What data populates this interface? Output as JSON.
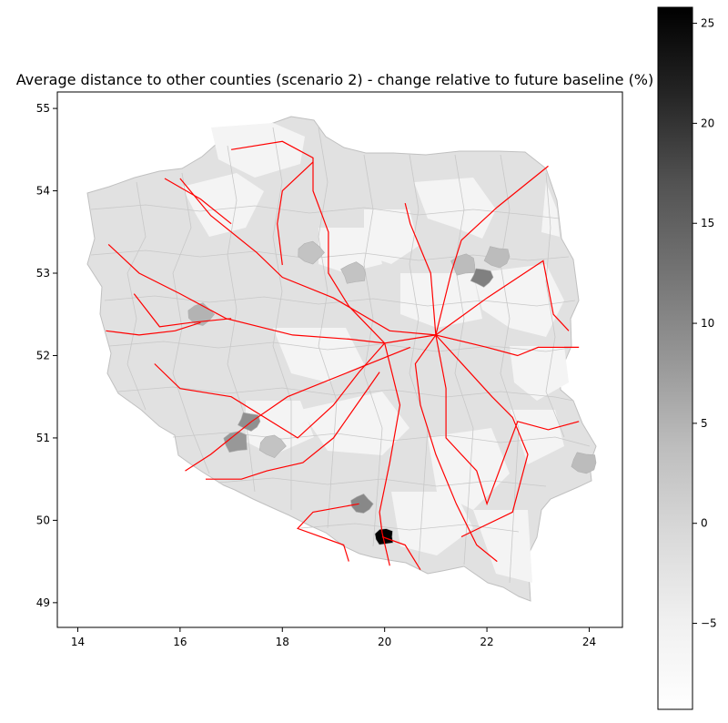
{
  "chart_data": {
    "type": "choropleth-map",
    "title": "Average distance to other counties (scenario 2) - change relative to future baseline (%)",
    "x_ticks": [
      14,
      16,
      18,
      20,
      22,
      24
    ],
    "y_ticks": [
      49,
      50,
      51,
      52,
      53,
      54,
      55
    ],
    "xlim": [
      13.6,
      24.65
    ],
    "ylim": [
      48.7,
      55.2
    ],
    "colorbar": {
      "colormap": "Greys",
      "range": [
        -9.3,
        25.8
      ],
      "ticks": [
        -5,
        0,
        5,
        10,
        15,
        20,
        25
      ]
    },
    "grid": false,
    "legend": "none",
    "colors": {
      "rail_lines": "#ff0000",
      "boundary": "#c8c8c8",
      "background_region": "#e1e1e1",
      "max_region": "#000000"
    },
    "highlighted_regions": [
      {
        "center": [
          20.0,
          49.8
        ],
        "value": 25.8
      },
      {
        "center": [
          21.9,
          52.95
        ],
        "value": 11
      },
      {
        "center": [
          19.55,
          50.2
        ],
        "value": 10
      },
      {
        "center": [
          17.1,
          50.95
        ],
        "value": 8
      },
      {
        "center": [
          17.35,
          51.2
        ],
        "value": 9
      },
      {
        "center": [
          16.4,
          52.5
        ],
        "value": 5
      },
      {
        "center": [
          21.55,
          53.1
        ],
        "value": 4
      },
      {
        "center": [
          22.2,
          53.2
        ],
        "value": 4
      },
      {
        "center": [
          18.55,
          53.25
        ],
        "value": 3
      },
      {
        "center": [
          19.4,
          53.0
        ],
        "value": 3
      },
      {
        "center": [
          23.9,
          50.7
        ],
        "value": 4
      },
      {
        "center": [
          17.8,
          50.9
        ],
        "value": 3
      }
    ],
    "rail_lines": [
      [
        [
          14.6,
          53.35
        ],
        [
          15.2,
          53.0
        ],
        [
          16.0,
          52.75
        ],
        [
          16.9,
          52.45
        ],
        [
          18.2,
          52.25
        ],
        [
          19.3,
          52.2
        ],
        [
          20.0,
          52.15
        ],
        [
          21.0,
          52.25
        ]
      ],
      [
        [
          15.1,
          52.75
        ],
        [
          15.6,
          52.35
        ],
        [
          16.2,
          52.4
        ],
        [
          17.0,
          52.45
        ]
      ],
      [
        [
          14.55,
          52.3
        ],
        [
          15.2,
          52.25
        ],
        [
          15.9,
          52.3
        ],
        [
          16.4,
          52.4
        ]
      ],
      [
        [
          15.5,
          51.9
        ],
        [
          16.0,
          51.6
        ],
        [
          17.0,
          51.5
        ],
        [
          18.3,
          51.0
        ],
        [
          19.0,
          51.4
        ],
        [
          19.5,
          51.8
        ],
        [
          20.0,
          52.15
        ]
      ],
      [
        [
          16.0,
          54.15
        ],
        [
          16.6,
          53.7
        ],
        [
          17.5,
          53.25
        ],
        [
          18.0,
          52.95
        ],
        [
          19.0,
          52.7
        ],
        [
          20.1,
          52.3
        ],
        [
          21.0,
          52.25
        ]
      ],
      [
        [
          15.7,
          54.15
        ],
        [
          16.4,
          53.9
        ],
        [
          17.0,
          53.6
        ]
      ],
      [
        [
          17.0,
          54.5
        ],
        [
          18.0,
          54.6
        ],
        [
          18.6,
          54.4
        ],
        [
          18.6,
          54.0
        ],
        [
          18.9,
          53.5
        ],
        [
          18.9,
          53.0
        ],
        [
          19.3,
          52.6
        ],
        [
          20.0,
          52.15
        ]
      ],
      [
        [
          18.6,
          54.35
        ],
        [
          18.0,
          54.0
        ],
        [
          17.9,
          53.6
        ],
        [
          18.0,
          53.1
        ]
      ],
      [
        [
          20.0,
          52.15
        ],
        [
          20.3,
          51.4
        ],
        [
          20.1,
          50.7
        ],
        [
          19.9,
          50.1
        ],
        [
          19.95,
          49.85
        ],
        [
          20.1,
          49.45
        ]
      ],
      [
        [
          21.0,
          52.25
        ],
        [
          20.6,
          51.9
        ],
        [
          20.7,
          51.4
        ],
        [
          21.0,
          50.8
        ],
        [
          21.4,
          50.2
        ],
        [
          21.8,
          49.7
        ],
        [
          22.2,
          49.5
        ]
      ],
      [
        [
          21.0,
          52.25
        ],
        [
          21.2,
          51.6
        ],
        [
          21.2,
          51.0
        ],
        [
          21.8,
          50.6
        ],
        [
          22.0,
          50.2
        ],
        [
          22.6,
          51.2
        ],
        [
          23.2,
          51.1
        ],
        [
          23.8,
          51.2
        ]
      ],
      [
        [
          21.0,
          52.25
        ],
        [
          22.0,
          52.1
        ],
        [
          22.6,
          52.0
        ],
        [
          23.0,
          52.1
        ],
        [
          23.8,
          52.1
        ]
      ],
      [
        [
          21.0,
          52.25
        ],
        [
          22.0,
          52.7
        ],
        [
          23.1,
          53.15
        ],
        [
          23.3,
          52.5
        ],
        [
          23.6,
          52.3
        ]
      ],
      [
        [
          21.0,
          52.25
        ],
        [
          21.3,
          53.0
        ],
        [
          21.5,
          53.4
        ],
        [
          22.2,
          53.8
        ],
        [
          23.2,
          54.3
        ]
      ],
      [
        [
          21.0,
          52.25
        ],
        [
          20.9,
          53.0
        ],
        [
          20.5,
          53.6
        ],
        [
          20.4,
          53.85
        ]
      ],
      [
        [
          21.0,
          52.25
        ],
        [
          22.1,
          51.5
        ],
        [
          22.5,
          51.25
        ],
        [
          22.8,
          50.8
        ],
        [
          22.5,
          50.1
        ],
        [
          21.5,
          49.8
        ]
      ],
      [
        [
          20.5,
          52.1
        ],
        [
          19.3,
          51.8
        ],
        [
          18.1,
          51.5
        ],
        [
          17.4,
          51.2
        ],
        [
          16.6,
          50.8
        ],
        [
          16.1,
          50.6
        ]
      ],
      [
        [
          19.9,
          51.8
        ],
        [
          19.0,
          51.0
        ],
        [
          18.4,
          50.7
        ],
        [
          17.7,
          50.6
        ],
        [
          17.2,
          50.5
        ],
        [
          16.5,
          50.5
        ]
      ],
      [
        [
          19.5,
          50.2
        ],
        [
          18.6,
          50.1
        ],
        [
          18.3,
          49.9
        ],
        [
          19.2,
          49.7
        ],
        [
          19.3,
          49.5
        ]
      ],
      [
        [
          19.95,
          49.8
        ],
        [
          20.4,
          49.7
        ],
        [
          20.7,
          49.4
        ]
      ]
    ]
  }
}
